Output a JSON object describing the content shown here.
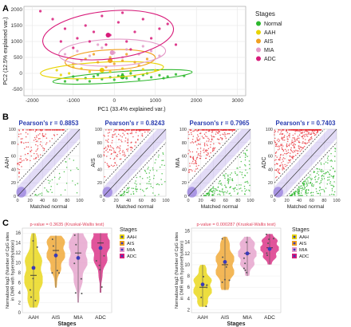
{
  "panels": {
    "a": "A",
    "b": "B",
    "c": "C"
  },
  "chart_data": [
    {
      "id": "A",
      "type": "scatter",
      "xlabel": "PC1 (33.4% explained var.)",
      "ylabel": "PC2 (12.5% explained var.)",
      "xlim": [
        -2200,
        3200
      ],
      "ylim": [
        -700,
        2100
      ],
      "xticks": [
        "-2000",
        "-1000",
        "0",
        "1000",
        "2000",
        "3000"
      ],
      "yticks": [
        "-500",
        "0",
        "500",
        "1000",
        "1500",
        "2000"
      ],
      "legend": {
        "title": "Stages",
        "placement": "right"
      },
      "series": [
        {
          "name": "Normal",
          "color": "#2db82d",
          "points": [
            [
              -1200,
              -250
            ],
            [
              -900,
              -200
            ],
            [
              -700,
              -150
            ],
            [
              -500,
              -100
            ],
            [
              -300,
              -180
            ],
            [
              -100,
              -120
            ],
            [
              100,
              -80
            ],
            [
              300,
              -150
            ],
            [
              500,
              -100
            ],
            [
              700,
              -50
            ],
            [
              900,
              -120
            ],
            [
              1100,
              -60
            ],
            [
              1300,
              -100
            ],
            [
              1500,
              -30
            ],
            [
              1700,
              -80
            ],
            [
              -1000,
              -100
            ],
            [
              -400,
              -50
            ],
            [
              0,
              -200
            ],
            [
              200,
              -30
            ],
            [
              600,
              -180
            ],
            [
              800,
              0
            ],
            [
              1200,
              -150
            ],
            [
              -600,
              -250
            ],
            [
              400,
              0
            ]
          ],
          "centroid": [
            200,
            -110
          ]
        },
        {
          "name": "AAH",
          "color": "#e8d300",
          "points": [
            [
              -1400,
              100
            ],
            [
              -1100,
              0
            ],
            [
              -800,
              150
            ],
            [
              -600,
              50
            ],
            [
              -300,
              100
            ],
            [
              -100,
              50
            ],
            [
              200,
              150
            ],
            [
              400,
              80
            ],
            [
              700,
              130
            ],
            [
              1000,
              100
            ],
            [
              -1300,
              -50
            ],
            [
              -1000,
              200
            ]
          ],
          "centroid": [
            -300,
            100
          ]
        },
        {
          "name": "AIS",
          "color": "#f0a020",
          "points": [
            [
              -1000,
              300
            ],
            [
              -700,
              450
            ],
            [
              -400,
              350
            ],
            [
              -100,
              500
            ],
            [
              200,
              400
            ],
            [
              500,
              350
            ],
            [
              800,
              450
            ],
            [
              -500,
              600
            ],
            [
              0,
              300
            ],
            [
              300,
              600
            ],
            [
              -200,
              200
            ],
            [
              600,
              250
            ]
          ],
          "centroid": [
            -100,
            400
          ]
        },
        {
          "name": "MIA",
          "color": "#e49ac8",
          "points": [
            [
              -1200,
              600
            ],
            [
              -900,
              700
            ],
            [
              -600,
              550
            ],
            [
              -300,
              800
            ],
            [
              0,
              650
            ],
            [
              300,
              750
            ],
            [
              600,
              600
            ],
            [
              900,
              700
            ],
            [
              -800,
              400
            ],
            [
              -400,
              900
            ],
            [
              200,
              500
            ],
            [
              700,
              850
            ],
            [
              1100,
              550
            ]
          ],
          "centroid": [
            -50,
            650
          ]
        },
        {
          "name": "ADC",
          "color": "#d81b7a",
          "points": [
            [
              -1800,
              1950
            ],
            [
              -1500,
              1700
            ],
            [
              -1200,
              1400
            ],
            [
              -900,
              1100
            ],
            [
              -700,
              1500
            ],
            [
              -500,
              1300
            ],
            [
              -300,
              1800
            ],
            [
              -100,
              1200
            ],
            [
              100,
              1600
            ],
            [
              300,
              1000
            ],
            [
              500,
              1300
            ],
            [
              700,
              1700
            ],
            [
              900,
              1100
            ],
            [
              1100,
              1400
            ],
            [
              1300,
              1550
            ],
            [
              -1000,
              800
            ],
            [
              -200,
              900
            ],
            [
              400,
              750
            ],
            [
              1500,
              900
            ],
            [
              -600,
              1000
            ],
            [
              200,
              1900
            ],
            [
              -1300,
              1000
            ]
          ],
          "centroid": [
            -150,
            1200
          ]
        }
      ]
    },
    {
      "id": "B",
      "type": "scatter",
      "xlabel": "Matched normal",
      "ticks": [
        "0",
        "20",
        "40",
        "60",
        "80",
        "100"
      ],
      "xlim": [
        0,
        100
      ],
      "ylim": [
        0,
        100
      ],
      "subplots": [
        {
          "ylabel": "AAH",
          "title": "Pearson's r = 0.8853"
        },
        {
          "ylabel": "AIS",
          "title": "Pearson's r = 0.8243"
        },
        {
          "ylabel": "MIA",
          "title": "Pearson's r = 0.7965"
        },
        {
          "ylabel": "ADC",
          "title": "Pearson's r = 0.7403"
        }
      ],
      "colors": {
        "hyper": "#e8242c",
        "hypo": "#2bb52b",
        "density": "#7b5cd6"
      }
    },
    {
      "id": "C",
      "type": "violin",
      "categories": [
        "AAH",
        "AIS",
        "MIA",
        "ADC"
      ],
      "colors": [
        "#e8d300",
        "#f0a020",
        "#e49ac8",
        "#d81b7a"
      ],
      "xlabel": "Stages",
      "legend": {
        "title": "Stages",
        "placement": "right"
      },
      "subplots": [
        {
          "annotation": "p-value = 0.3635 (Kruskal-Wallis test)",
          "ylabel": "Normalized log2 (Number of CpG sites in DMR with hypermethylation)",
          "yticks": [
            "0",
            "2",
            "4",
            "6",
            "8",
            "10",
            "12",
            "14",
            "16"
          ],
          "ylim": [
            0,
            17
          ],
          "medians": [
            7.5,
            12.5,
            12.0,
            14.0
          ],
          "means": [
            9.0,
            11.5,
            11.0,
            13.0
          ],
          "ranges": [
            [
              1,
              16
            ],
            [
              5,
              15.5
            ],
            [
              2,
              16
            ],
            [
              4,
              16
            ]
          ]
        },
        {
          "annotation": "p-value = 0.000287 (Kruskal-Wallis test)",
          "ylabel": "Normalized log2 (Number of CpG sites in DMR with hypomethylation)",
          "yticks": [
            "2",
            "4",
            "6",
            "8",
            "10",
            "12",
            "14",
            "16"
          ],
          "ylim": [
            1.5,
            16.5
          ],
          "medians": [
            6.0,
            10.0,
            12.0,
            13.0
          ],
          "means": [
            6.5,
            10.5,
            12.0,
            12.8
          ],
          "ranges": [
            [
              2.5,
              10
            ],
            [
              5.5,
              15
            ],
            [
              8,
              15
            ],
            [
              10,
              15.5
            ]
          ]
        }
      ]
    }
  ]
}
